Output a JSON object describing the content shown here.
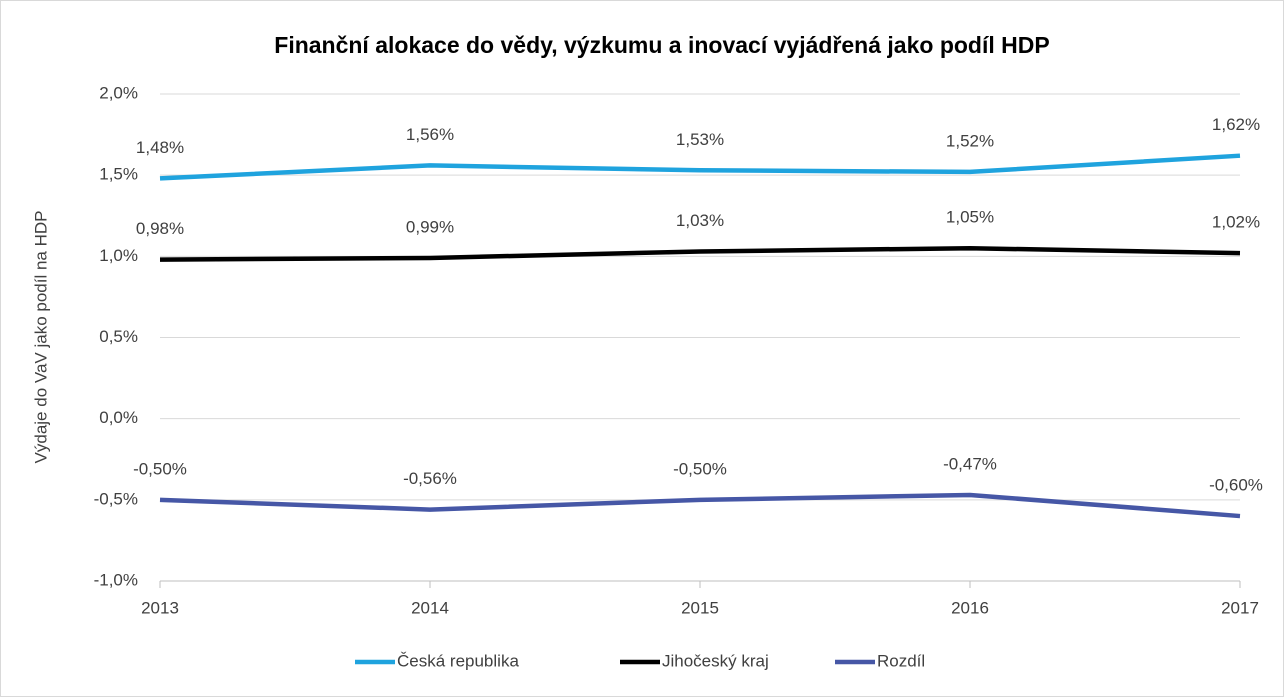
{
  "chart_data": {
    "type": "line",
    "title": "Finanční alokace do vědy, výzkumu a inovací vyjádřená jako podíl HDP",
    "y_axis_label": "Výdaje do VaV jako podíl na HDP",
    "categories": [
      "2013",
      "2014",
      "2015",
      "2016",
      "2017"
    ],
    "series": [
      {
        "name": "Česká republika",
        "color": "#1fa3de",
        "values": [
          1.48,
          1.56,
          1.53,
          1.52,
          1.62
        ],
        "value_labels": [
          "1,48%",
          "1,56%",
          "1,53%",
          "1,52%",
          "1,62%"
        ]
      },
      {
        "name": "Jihočeský kraj",
        "color": "#000000",
        "values": [
          0.98,
          0.99,
          1.03,
          1.05,
          1.02
        ],
        "value_labels": [
          "0,98%",
          "0,99%",
          "1,03%",
          "1,05%",
          "1,02%"
        ]
      },
      {
        "name": "Rozdíl",
        "color": "#4657a6",
        "values": [
          -0.5,
          -0.56,
          -0.5,
          -0.47,
          -0.6
        ],
        "value_labels": [
          "-0,50%",
          "-0,56%",
          "-0,50%",
          "-0,47%",
          "-0,60%"
        ]
      }
    ],
    "ylim": [
      -1,
      2
    ],
    "yticks": [
      {
        "value": -1,
        "label": "-1,0%"
      },
      {
        "value": -0.5,
        "label": "-0,5%"
      },
      {
        "value": 0,
        "label": "0,0%"
      },
      {
        "value": 0.5,
        "label": "0,5%"
      },
      {
        "value": 1,
        "label": "1,0%"
      },
      {
        "value": 1.5,
        "label": "1,5%"
      },
      {
        "value": 2,
        "label": "2,0%"
      }
    ],
    "grid": true,
    "legend": "bottom"
  }
}
